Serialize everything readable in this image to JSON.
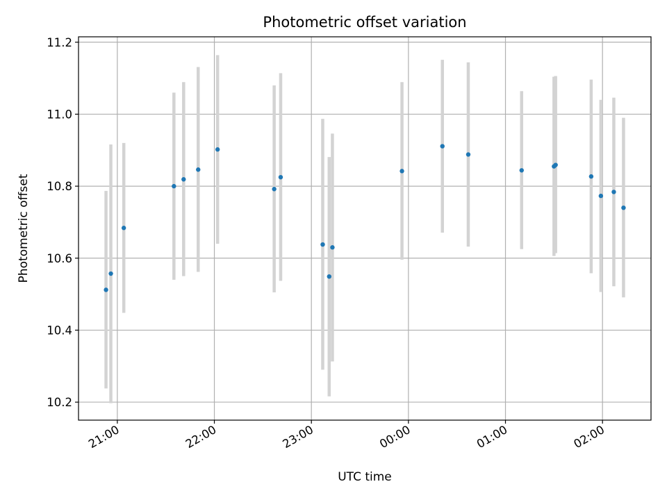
{
  "chart_data": {
    "type": "scatter",
    "title": "Photometric offset variation",
    "xlabel": "UTC time",
    "ylabel": "Photometric offset",
    "x_is_time": true,
    "x_range": [
      "20:36",
      "02:30"
    ],
    "x_tick_labels": [
      "21:00",
      "22:00",
      "23:00",
      "00:00",
      "01:00",
      "02:00"
    ],
    "ylim": [
      10.15,
      11.215
    ],
    "y_ticks": [
      10.2,
      10.4,
      10.6,
      10.8,
      11.0,
      11.2
    ],
    "y_tick_labels": [
      "10.2",
      "10.4",
      "10.6",
      "10.8",
      "11.0",
      "11.2"
    ],
    "grid": true,
    "marker_color": "#1f77b4",
    "errorbar_color": "#d3d3d3",
    "series": [
      {
        "points": [
          {
            "time": "20:53",
            "y": 10.512,
            "lo": 10.238,
            "hi": 10.787
          },
          {
            "time": "20:56",
            "y": 10.557,
            "lo": 10.197,
            "hi": 10.916
          },
          {
            "time": "21:04",
            "y": 10.684,
            "lo": 10.448,
            "hi": 10.92
          },
          {
            "time": "21:35",
            "y": 10.8,
            "lo": 10.54,
            "hi": 11.06
          },
          {
            "time": "21:41",
            "y": 10.819,
            "lo": 10.55,
            "hi": 11.089
          },
          {
            "time": "21:50",
            "y": 10.846,
            "lo": 10.562,
            "hi": 11.131
          },
          {
            "time": "22:02",
            "y": 10.902,
            "lo": 10.64,
            "hi": 11.164
          },
          {
            "time": "22:37",
            "y": 10.792,
            "lo": 10.505,
            "hi": 11.08
          },
          {
            "time": "22:41",
            "y": 10.825,
            "lo": 10.537,
            "hi": 11.114
          },
          {
            "time": "23:07",
            "y": 10.638,
            "lo": 10.29,
            "hi": 10.987
          },
          {
            "time": "23:11",
            "y": 10.549,
            "lo": 10.216,
            "hi": 10.881
          },
          {
            "time": "23:13",
            "y": 10.63,
            "lo": 10.313,
            "hi": 10.946
          },
          {
            "time": "23:56",
            "y": 10.842,
            "lo": 10.596,
            "hi": 11.089
          },
          {
            "time": "00:21",
            "y": 10.911,
            "lo": 10.671,
            "hi": 11.151
          },
          {
            "time": "00:37",
            "y": 10.888,
            "lo": 10.632,
            "hi": 11.144
          },
          {
            "time": "01:10",
            "y": 10.844,
            "lo": 10.625,
            "hi": 11.064
          },
          {
            "time": "01:30",
            "y": 10.855,
            "lo": 10.606,
            "hi": 11.104
          },
          {
            "time": "01:31",
            "y": 10.859,
            "lo": 10.614,
            "hi": 11.106
          },
          {
            "time": "01:53",
            "y": 10.827,
            "lo": 10.558,
            "hi": 11.096
          },
          {
            "time": "01:59",
            "y": 10.773,
            "lo": 10.506,
            "hi": 11.04
          },
          {
            "time": "02:07",
            "y": 10.784,
            "lo": 10.522,
            "hi": 11.046
          },
          {
            "time": "02:13",
            "y": 10.74,
            "lo": 10.491,
            "hi": 10.99
          }
        ]
      }
    ]
  }
}
